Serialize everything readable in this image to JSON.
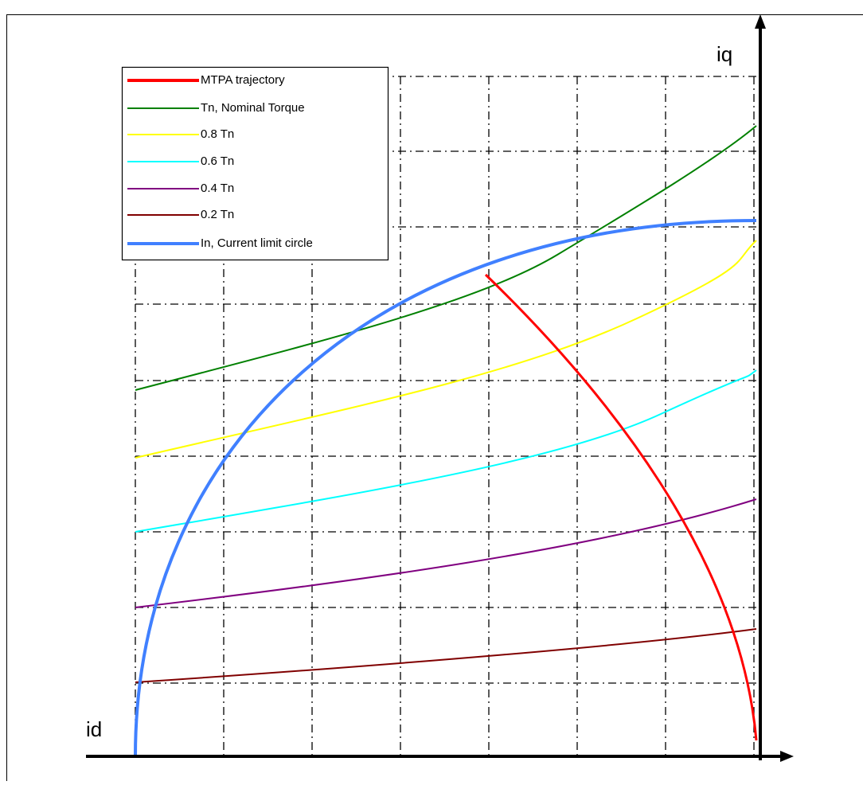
{
  "axes": {
    "x": "id",
    "y": "iq"
  },
  "legend": [
    {
      "label": "MTPA trajectory",
      "color": "#ff0000"
    },
    {
      "label": "Tn, Nominal Torque",
      "color": "#008000"
    },
    {
      "label": "0.8 Tn",
      "color": "#ffff00"
    },
    {
      "label": "0.6 Tn",
      "color": "#00ffff"
    },
    {
      "label": "0.4 Tn",
      "color": "#800080"
    },
    {
      "label": "0.2 Tn",
      "color": "#800000"
    },
    {
      "label": "In, Current limit circle",
      "color": "#4080ff"
    }
  ]
}
